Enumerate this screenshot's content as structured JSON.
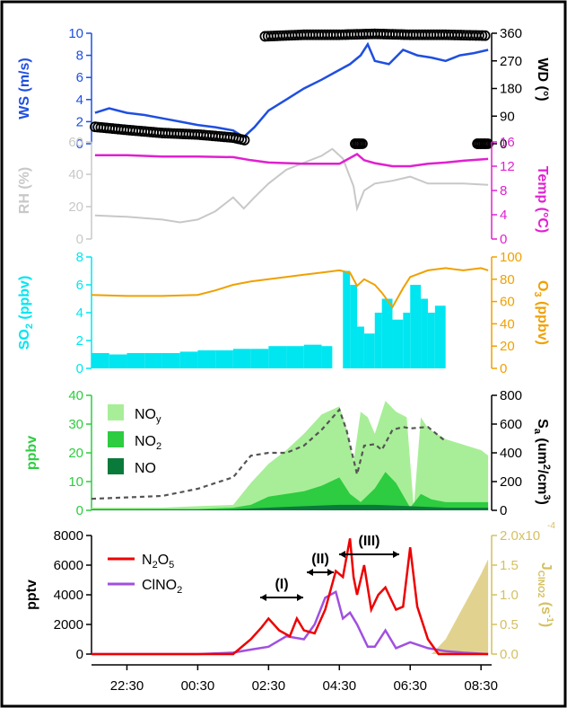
{
  "colors": {
    "ws": "#1f4fe0",
    "wd": "#000000",
    "rh": "#c8c8c8",
    "temp": "#e020d0",
    "so2": "#00e6f0",
    "o3": "#f0a000",
    "noy": "#a8ee98",
    "no2": "#2ecc40",
    "no": "#0a7a3a",
    "sa": "#555555",
    "n2o5": "#ee0000",
    "clno2": "#a050e0",
    "jclno2": "#d4c060",
    "axis_black": "#000000"
  },
  "x_ticks": [
    "22:30",
    "00:30",
    "02:30",
    "04:30",
    "06:30",
    "08:30"
  ],
  "panels": {
    "wind": {
      "ylabel_left": "WS (m/s)",
      "ylabel_right": "WD (°)",
      "left_ticks": [
        "10",
        "8",
        "6",
        "4",
        "2",
        "0"
      ],
      "right_ticks": [
        "360",
        "270",
        "180",
        "90",
        "0"
      ]
    },
    "met": {
      "ylabel_left": "RH (%)",
      "ylabel_right": "Temp (°C)",
      "left_ticks": [
        "60",
        "40",
        "20",
        "0"
      ],
      "right_ticks": [
        "16",
        "12",
        "8",
        "4",
        "0"
      ]
    },
    "so2o3": {
      "ylabel_left_main": "SO",
      "ylabel_left_sub": "2",
      "ylabel_left_tail": " (ppbv)",
      "ylabel_right_main": "O",
      "ylabel_right_sub": "3",
      "ylabel_right_tail": " (ppbv)",
      "left_ticks": [
        "8",
        "6",
        "4",
        "2",
        "0"
      ],
      "right_ticks": [
        "100",
        "80",
        "60",
        "40",
        "20",
        "0"
      ]
    },
    "nox": {
      "ylabel_left": "ppbv",
      "ylabel_right_main": "S",
      "ylabel_right_sub": "a",
      "ylabel_right_tail1": " (um",
      "ylabel_right_sup": "2",
      "ylabel_right_tail2": "/cm",
      "ylabel_right_sup2": "3",
      "ylabel_right_tail3": ")",
      "left_ticks": [
        "40",
        "30",
        "20",
        "10",
        "0"
      ],
      "right_ticks": [
        "800",
        "600",
        "400",
        "200",
        "0"
      ],
      "legend": [
        {
          "main": "NO",
          "sub": "y"
        },
        {
          "main": "NO",
          "sub": "2"
        },
        {
          "main": "NO",
          "sub": ""
        }
      ]
    },
    "n2o5": {
      "ylabel_left": "pptv",
      "ylabel_right_main": "J",
      "ylabel_right_sub": "ClNO2",
      "ylabel_right_tail": " (s",
      "ylabel_right_sup": "-1",
      "ylabel_right_tail2": ")",
      "left_ticks": [
        "8000",
        "6000",
        "4000",
        "2000",
        "0"
      ],
      "right_ticks": [
        "2.0x10",
        "1.5",
        "1.0",
        "0.5",
        "0.0"
      ],
      "right_top_exp": "-4",
      "legend": [
        {
          "main": "N",
          "sub": "2",
          "mid": "O",
          "sub2": "5"
        },
        {
          "main": "ClNO",
          "sub": "2",
          "mid": "",
          "sub2": ""
        }
      ],
      "periods": [
        "(I)",
        "(II)",
        "(III)"
      ]
    }
  },
  "chart_data": [
    {
      "type": "line",
      "panel": "wind",
      "x_unit": "hours since 22:30",
      "xlim": [
        -1,
        10.3
      ],
      "series": [
        {
          "name": "WS",
          "axis": "left",
          "ylim": [
            0,
            10
          ],
          "x": [
            -0.9,
            -0.5,
            0,
            0.5,
            1,
            1.5,
            2,
            2.5,
            3,
            3.3,
            3.6,
            4,
            4.5,
            5,
            5.5,
            5.9,
            6.3,
            6.6,
            6.8,
            7,
            7.4,
            7.8,
            8.2,
            8.6,
            9,
            9.4,
            9.8,
            10.2
          ],
          "y": [
            2.8,
            3.2,
            2.8,
            2.6,
            2.3,
            2.0,
            1.7,
            1.5,
            1.2,
            0.6,
            1.5,
            3.0,
            4.0,
            5.0,
            5.8,
            6.5,
            7.2,
            8.0,
            9.0,
            7.5,
            7.2,
            8.5,
            8.0,
            7.8,
            7.5,
            8.0,
            8.2,
            8.5
          ]
        },
        {
          "name": "WD",
          "axis": "right",
          "ylim": [
            0,
            360
          ],
          "segments": [
            {
              "x": [
                -0.9,
                0,
                1,
                2,
                3,
                3.4
              ],
              "y": [
                55,
                45,
                35,
                30,
                20,
                10
              ]
            },
            {
              "x": [
                3.9,
                5,
                6,
                7,
                8,
                9,
                10.2
              ],
              "y": [
                350,
                355,
                355,
                358,
                355,
                355,
                352
              ]
            },
            {
              "x": [
                6.45,
                6.55,
                6.65
              ],
              "y": [
                0,
                0,
                0
              ]
            },
            {
              "x": [
                9.9,
                10.0,
                10.1,
                10.2
              ],
              "y": [
                0,
                0,
                0,
                0
              ]
            }
          ]
        }
      ]
    },
    {
      "type": "line",
      "panel": "met",
      "x_unit": "hours since 22:30",
      "xlim": [
        -1,
        10.3
      ],
      "series": [
        {
          "name": "RH",
          "axis": "left",
          "ylim": [
            0,
            70
          ],
          "x": [
            -0.9,
            0,
            1,
            1.5,
            2,
            2.5,
            3,
            3.3,
            3.6,
            4,
            4.5,
            5,
            5.5,
            5.8,
            6.1,
            6.4,
            6.5,
            6.7,
            7,
            7.5,
            8,
            8.5,
            9,
            9.5,
            10.2
          ],
          "y": [
            17,
            16,
            14,
            12,
            14,
            20,
            30,
            22,
            30,
            40,
            50,
            55,
            60,
            65,
            58,
            38,
            22,
            35,
            40,
            42,
            45,
            40,
            40,
            40,
            39
          ]
        },
        {
          "name": "Temp",
          "axis": "right",
          "ylim": [
            0,
            16
          ],
          "x": [
            -0.9,
            0,
            1,
            2,
            3,
            3.5,
            4,
            5,
            6,
            6.5,
            6.7,
            7,
            7.5,
            8,
            8.5,
            9,
            9.5,
            10.2
          ],
          "y": [
            13.8,
            13.8,
            13.6,
            13.6,
            13.5,
            13.0,
            12.6,
            12.4,
            12.4,
            14.0,
            13.0,
            12.5,
            12.0,
            12.0,
            12.4,
            12.6,
            12.9,
            13.2
          ]
        }
      ]
    },
    {
      "type": "bar",
      "panel": "so2o3",
      "x_unit": "hours since 22:30",
      "xlim": [
        -1,
        10.3
      ],
      "series": [
        {
          "name": "SO2",
          "axis": "left",
          "ylim": [
            0,
            8
          ],
          "x": [
            -1,
            -0.5,
            0,
            0.5,
            1,
            1.5,
            2,
            2.5,
            3,
            3.5,
            4,
            4.5,
            5,
            5.5,
            5.8,
            6.1,
            6.3,
            6.5,
            6.7,
            7,
            7.2,
            7.5,
            7.8,
            8,
            8.3,
            8.5,
            8.7
          ],
          "y": [
            1.1,
            1.0,
            1.1,
            1.1,
            1.1,
            1.2,
            1.3,
            1.3,
            1.4,
            1.4,
            1.6,
            1.6,
            1.7,
            1.6,
            0,
            7.0,
            6.0,
            3.0,
            2.5,
            4.0,
            5.0,
            3.5,
            4.0,
            6.0,
            5.0,
            4.0,
            4.5
          ]
        },
        {
          "name": "O3",
          "axis": "right",
          "ylim": [
            0,
            100
          ],
          "x": [
            -1,
            0,
            1,
            2,
            2.5,
            3,
            3.5,
            4,
            4.5,
            5,
            5.5,
            6,
            6.3,
            6.5,
            6.7,
            7,
            7.2,
            7.5,
            7.8,
            8,
            8.5,
            9,
            9.5,
            10,
            10.2
          ],
          "y": [
            66,
            65,
            65,
            66,
            70,
            75,
            78,
            80,
            82,
            84,
            86,
            88,
            86,
            74,
            80,
            75,
            68,
            55,
            72,
            82,
            88,
            90,
            88,
            90,
            88
          ]
        }
      ]
    },
    {
      "type": "area",
      "panel": "nox",
      "x_unit": "hours since 22:30",
      "xlim": [
        -1,
        10.3
      ],
      "series": [
        {
          "name": "NOy",
          "axis": "left",
          "ylim": [
            0,
            42
          ],
          "x": [
            -1,
            0,
            1,
            2,
            3,
            3.5,
            4,
            4.5,
            5,
            5.5,
            6,
            6.2,
            6.4,
            6.6,
            6.8,
            7,
            7.3,
            7.6,
            7.9,
            8.1,
            8.3,
            8.5,
            9,
            9.5,
            10,
            10.2
          ],
          "y": [
            1,
            1,
            1,
            1.5,
            2,
            10,
            17,
            22,
            28,
            35,
            38,
            30,
            18,
            36,
            34,
            28,
            40,
            36,
            34,
            1,
            34,
            30,
            26,
            24,
            22,
            20
          ]
        },
        {
          "name": "NO2",
          "axis": "left",
          "ylim": [
            0,
            42
          ],
          "x": [
            -1,
            0,
            1,
            2,
            3,
            3.5,
            4,
            4.5,
            5,
            5.5,
            6,
            6.3,
            6.6,
            7,
            7.3,
            7.6,
            8,
            8.3,
            8.6,
            9,
            10.2
          ],
          "y": [
            0.5,
            0.5,
            0.5,
            0.5,
            1,
            2,
            5,
            6,
            7,
            9,
            12,
            6,
            3,
            8,
            14,
            10,
            1,
            6,
            4,
            3,
            3
          ]
        },
        {
          "name": "NO",
          "axis": "left",
          "ylim": [
            0,
            42
          ],
          "x": [
            -1,
            0,
            2,
            3,
            4,
            5,
            6,
            7,
            8,
            9,
            10.2
          ],
          "y": [
            0.2,
            0.2,
            0.3,
            0.4,
            1,
            1.5,
            2,
            2,
            1.5,
            1,
            1
          ]
        },
        {
          "name": "Sa",
          "axis": "right",
          "ylim": [
            0,
            800
          ],
          "x": [
            -1,
            0,
            1,
            2,
            3,
            3.5,
            4,
            4.5,
            5,
            5.5,
            6,
            6.2,
            6.5,
            6.7,
            7,
            7.2,
            7.5,
            7.8,
            8,
            8.5,
            9
          ],
          "y": [
            80,
            90,
            100,
            150,
            230,
            380,
            400,
            400,
            450,
            560,
            700,
            560,
            250,
            450,
            460,
            420,
            560,
            580,
            570,
            580,
            480
          ]
        }
      ]
    },
    {
      "type": "line",
      "panel": "n2o5",
      "x_unit": "hours since 22:30",
      "xlim": [
        -1,
        10.3
      ],
      "series": [
        {
          "name": "N2O5",
          "axis": "left",
          "ylim": [
            0,
            8000
          ],
          "x": [
            -1,
            0,
            1,
            2,
            3,
            3.5,
            3.8,
            4,
            4.3,
            4.6,
            4.8,
            5,
            5.3,
            5.6,
            5.9,
            6.1,
            6.3,
            6.4,
            6.5,
            6.7,
            6.9,
            7.1,
            7.3,
            7.6,
            7.8,
            8,
            8.2,
            8.5,
            8.8,
            9,
            10.2
          ],
          "y": [
            0,
            0,
            0,
            0,
            0,
            1000,
            1800,
            2400,
            1600,
            1200,
            2400,
            1600,
            1400,
            3000,
            5600,
            5200,
            7800,
            5200,
            4000,
            6000,
            3000,
            4000,
            4500,
            3000,
            3200,
            7200,
            3200,
            1000,
            0,
            0,
            0
          ]
        },
        {
          "name": "ClNO2",
          "axis": "left",
          "ylim": [
            0,
            8000
          ],
          "x": [
            -1,
            0,
            1,
            2,
            3,
            3.5,
            4,
            4.5,
            5,
            5.3,
            5.6,
            5.9,
            6.1,
            6.3,
            6.5,
            6.8,
            7,
            7.3,
            7.6,
            8,
            8.5,
            9,
            9.5,
            10.2
          ],
          "y": [
            0,
            0,
            0,
            0,
            100,
            300,
            500,
            1200,
            1000,
            2000,
            3800,
            4200,
            2400,
            2800,
            2000,
            500,
            500,
            1600,
            400,
            800,
            400,
            200,
            100,
            0
          ]
        },
        {
          "name": "JClNO2",
          "axis": "right",
          "ylim": [
            0,
            2.0
          ],
          "x": [
            8.6,
            9,
            9.5,
            10,
            10.2
          ],
          "y": [
            0,
            0.25,
            0.8,
            1.35,
            1.6
          ]
        }
      ]
    }
  ]
}
